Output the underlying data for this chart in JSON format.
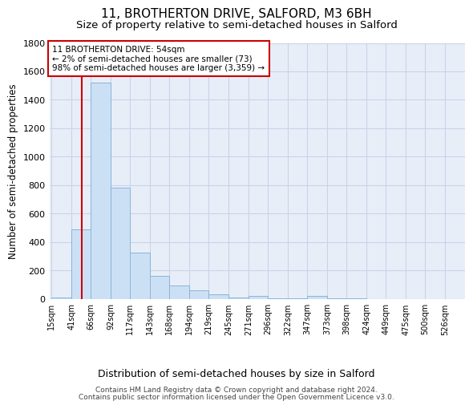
{
  "title1": "11, BROTHERTON DRIVE, SALFORD, M3 6BH",
  "title2": "Size of property relative to semi-detached houses in Salford",
  "xlabel": "Distribution of semi-detached houses by size in Salford",
  "ylabel": "Number of semi-detached properties",
  "footnote1": "Contains HM Land Registry data © Crown copyright and database right 2024.",
  "footnote2": "Contains public sector information licensed under the Open Government Licence v3.0.",
  "bin_edges": [
    15,
    41,
    66,
    92,
    117,
    143,
    168,
    194,
    219,
    245,
    271,
    296,
    322,
    347,
    373,
    398,
    424,
    449,
    475,
    500,
    526
  ],
  "bar_heights": [
    10,
    490,
    1520,
    780,
    325,
    160,
    95,
    60,
    35,
    10,
    20,
    5,
    2,
    20,
    2,
    2,
    1,
    1,
    1,
    1
  ],
  "bar_color": "#cce0f5",
  "bar_edge_color": "#8ab4d8",
  "property_size": 54,
  "red_line_color": "#cc0000",
  "annotation_text": "11 BROTHERTON DRIVE: 54sqm\n← 2% of semi-detached houses are smaller (73)\n98% of semi-detached houses are larger (3,359) →",
  "annotation_box_color": "#cc0000",
  "ylim": [
    0,
    1800
  ],
  "background_color": "#e8eef8",
  "grid_color": "#c8d4e8",
  "title1_fontsize": 11,
  "title2_fontsize": 9.5,
  "xlabel_fontsize": 9,
  "ylabel_fontsize": 8.5,
  "annot_fontsize": 7.5,
  "tick_fontsize": 7
}
